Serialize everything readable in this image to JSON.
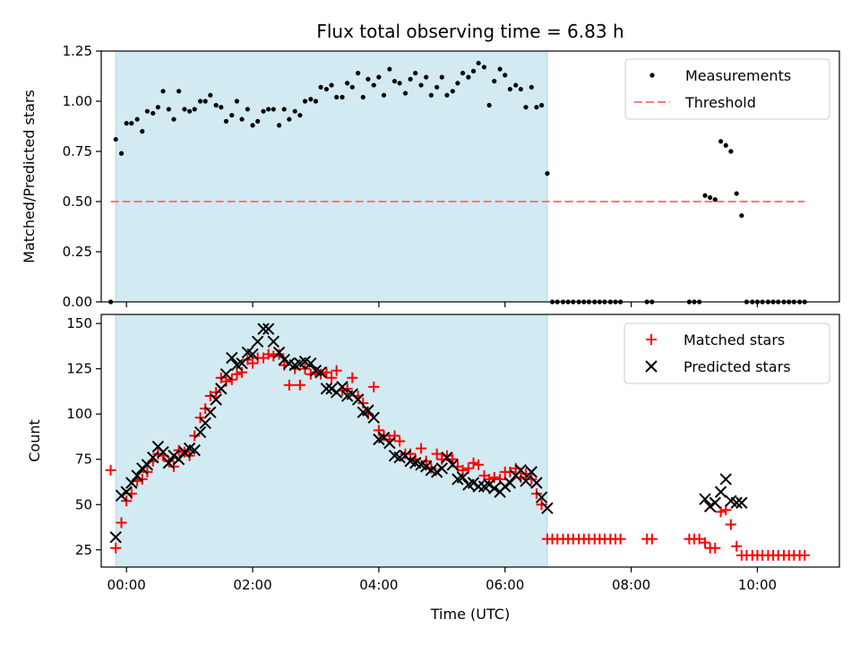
{
  "title": "Flux total observing time = 6.83 h",
  "xlabel": "Time (UTC)",
  "colors": {
    "shade": "#add8e6",
    "measurement": "#000000",
    "threshold": "#ff7777",
    "matched": "#ff0000",
    "predicted": "#000000"
  },
  "chart_data": [
    {
      "type": "scatter",
      "panel": "top",
      "ylabel": "Matched/Predicted stars",
      "xlim": [
        -0.4,
        11.3
      ],
      "ylim": [
        0,
        1.25
      ],
      "yticks": [
        "0.00",
        "0.25",
        "0.50",
        "0.75",
        "1.00",
        "1.25"
      ],
      "grid": false,
      "legend_position": "top-right",
      "shaded_interval": [
        -0.17,
        6.67
      ],
      "threshold": {
        "name": "Threshold",
        "value": 0.5,
        "x": [
          -0.25,
          10.75
        ]
      },
      "measurements": {
        "name": "Measurements",
        "x": [
          -0.25,
          -0.17,
          -0.08,
          0.0,
          0.08,
          0.17,
          0.25,
          0.33,
          0.42,
          0.5,
          0.58,
          0.67,
          0.75,
          0.83,
          0.92,
          1.0,
          1.08,
          1.17,
          1.25,
          1.33,
          1.42,
          1.5,
          1.58,
          1.67,
          1.75,
          1.83,
          1.92,
          2.0,
          2.08,
          2.17,
          2.25,
          2.33,
          2.42,
          2.5,
          2.58,
          2.67,
          2.75,
          2.83,
          2.92,
          3.0,
          3.08,
          3.17,
          3.25,
          3.33,
          3.42,
          3.5,
          3.58,
          3.67,
          3.75,
          3.83,
          3.92,
          4.0,
          4.08,
          4.17,
          4.25,
          4.33,
          4.42,
          4.5,
          4.58,
          4.67,
          4.75,
          4.83,
          4.92,
          5.0,
          5.08,
          5.17,
          5.25,
          5.33,
          5.42,
          5.5,
          5.58,
          5.67,
          5.75,
          5.83,
          5.92,
          6.0,
          6.08,
          6.17,
          6.25,
          6.33,
          6.42,
          6.5,
          6.58,
          6.67,
          6.75,
          6.83,
          6.92,
          7.0,
          7.08,
          7.17,
          7.25,
          7.33,
          7.42,
          7.5,
          7.58,
          7.67,
          7.75,
          7.83,
          8.25,
          8.33,
          8.92,
          9.0,
          9.08,
          9.17,
          9.25,
          9.33,
          9.42,
          9.5,
          9.58,
          9.67,
          9.75,
          9.83,
          9.92,
          10.0,
          10.08,
          10.17,
          10.25,
          10.33,
          10.42,
          10.5,
          10.58,
          10.67,
          10.75
        ],
        "y": [
          0.0,
          0.81,
          0.74,
          0.89,
          0.89,
          0.91,
          0.85,
          0.95,
          0.94,
          0.97,
          1.05,
          0.96,
          0.91,
          1.05,
          0.96,
          0.95,
          0.96,
          1.0,
          1.0,
          1.03,
          0.98,
          0.97,
          0.9,
          0.93,
          1.0,
          0.91,
          0.96,
          0.88,
          0.9,
          0.95,
          0.96,
          0.96,
          0.88,
          0.96,
          0.91,
          0.95,
          0.93,
          1.0,
          1.01,
          1.0,
          1.07,
          1.06,
          1.08,
          1.02,
          1.02,
          1.09,
          1.07,
          1.14,
          1.02,
          1.11,
          1.08,
          1.12,
          1.03,
          1.16,
          1.1,
          1.09,
          1.04,
          1.11,
          1.14,
          1.08,
          1.12,
          1.03,
          1.07,
          1.12,
          1.03,
          1.05,
          1.09,
          1.14,
          1.12,
          1.15,
          1.19,
          1.17,
          0.98,
          1.1,
          1.16,
          1.13,
          1.06,
          1.08,
          1.06,
          0.97,
          1.07,
          0.97,
          0.98,
          0.64,
          0.0,
          0.0,
          0.0,
          0.0,
          0.0,
          0.0,
          0.0,
          0.0,
          0.0,
          0.0,
          0.0,
          0.0,
          0.0,
          0.0,
          0.0,
          0.0,
          0.0,
          0.0,
          0.0,
          0.53,
          0.52,
          0.51,
          0.8,
          0.78,
          0.75,
          0.54,
          0.43,
          0.0,
          0.0,
          0.0,
          0.0,
          0.0,
          0.0,
          0.0,
          0.0,
          0.0,
          0.0,
          0.0,
          0.0
        ]
      }
    },
    {
      "type": "scatter",
      "panel": "bottom",
      "ylabel": "Count",
      "xlim": [
        -0.4,
        11.3
      ],
      "ylim": [
        15.5,
        155
      ],
      "yticks": [
        "25",
        "50",
        "75",
        "100",
        "125",
        "150"
      ],
      "xticks": [
        "00:00",
        "02:00",
        "04:00",
        "06:00",
        "08:00",
        "10:00"
      ],
      "grid": false,
      "legend_position": "top-right",
      "shaded_interval": [
        -0.17,
        6.67
      ],
      "series": [
        {
          "name": "Matched stars",
          "marker": "plus",
          "x": [
            -0.25,
            -0.17,
            -0.08,
            0.0,
            0.08,
            0.17,
            0.25,
            0.33,
            0.42,
            0.5,
            0.58,
            0.67,
            0.75,
            0.83,
            0.92,
            1.0,
            1.08,
            1.17,
            1.25,
            1.33,
            1.42,
            1.5,
            1.58,
            1.67,
            1.75,
            1.83,
            1.92,
            2.0,
            2.08,
            2.17,
            2.25,
            2.33,
            2.42,
            2.5,
            2.58,
            2.67,
            2.75,
            2.83,
            2.92,
            3.0,
            3.08,
            3.17,
            3.25,
            3.33,
            3.42,
            3.5,
            3.58,
            3.67,
            3.75,
            3.83,
            3.92,
            4.0,
            4.08,
            4.17,
            4.25,
            4.33,
            4.42,
            4.5,
            4.58,
            4.67,
            4.75,
            4.83,
            4.92,
            5.0,
            5.08,
            5.17,
            5.25,
            5.33,
            5.42,
            5.5,
            5.58,
            5.67,
            5.75,
            5.83,
            5.92,
            6.0,
            6.08,
            6.17,
            6.25,
            6.33,
            6.42,
            6.5,
            6.58,
            6.67,
            6.75,
            6.83,
            6.92,
            7.0,
            7.08,
            7.17,
            7.25,
            7.33,
            7.42,
            7.5,
            7.58,
            7.67,
            7.75,
            7.83,
            8.25,
            8.33,
            8.92,
            9.0,
            9.08,
            9.17,
            9.25,
            9.33,
            9.42,
            9.5,
            9.58,
            9.67,
            9.75,
            9.83,
            9.92,
            10.0,
            10.08,
            10.17,
            10.25,
            10.33,
            10.42,
            10.5,
            10.58,
            10.67,
            10.75
          ],
          "y": [
            69,
            26,
            40,
            52,
            56,
            63,
            64,
            68,
            74,
            78,
            77,
            74,
            71,
            80,
            79,
            77,
            88,
            98,
            103,
            110,
            112,
            120,
            118,
            119,
            122,
            123,
            130,
            128,
            131,
            131,
            133,
            132,
            133,
            127,
            116,
            125,
            116,
            125,
            122,
            123,
            122,
            123,
            120,
            124,
            113,
            114,
            120,
            110,
            106,
            100,
            115,
            91,
            88,
            86,
            88,
            85,
            78,
            78,
            75,
            81,
            74,
            70,
            78,
            75,
            77,
            75,
            71,
            69,
            70,
            73,
            72,
            66,
            64,
            65,
            64,
            68,
            68,
            70,
            65,
            67,
            64,
            56,
            50,
            31,
            31,
            31,
            31,
            31,
            31,
            31,
            31,
            31,
            31,
            31,
            31,
            31,
            31,
            31,
            31,
            31,
            31,
            31,
            31,
            29,
            26,
            26,
            46,
            47,
            39,
            27,
            22,
            22,
            22,
            22,
            22,
            22,
            22,
            22,
            22,
            22,
            22,
            22,
            22
          ]
        },
        {
          "name": "Predicted stars",
          "marker": "x",
          "x": [
            -0.17,
            -0.08,
            0.0,
            0.08,
            0.17,
            0.25,
            0.33,
            0.42,
            0.5,
            0.58,
            0.67,
            0.75,
            0.83,
            0.92,
            1.0,
            1.08,
            1.17,
            1.25,
            1.33,
            1.42,
            1.5,
            1.58,
            1.67,
            1.75,
            1.83,
            1.92,
            2.0,
            2.08,
            2.17,
            2.25,
            2.33,
            2.42,
            2.5,
            2.58,
            2.67,
            2.75,
            2.83,
            2.92,
            3.0,
            3.08,
            3.17,
            3.25,
            3.33,
            3.42,
            3.5,
            3.58,
            3.67,
            3.75,
            3.83,
            3.92,
            4.0,
            4.08,
            4.17,
            4.25,
            4.33,
            4.42,
            4.5,
            4.58,
            4.67,
            4.75,
            4.83,
            4.92,
            5.0,
            5.08,
            5.17,
            5.25,
            5.33,
            5.42,
            5.5,
            5.58,
            5.67,
            5.75,
            5.83,
            5.92,
            6.0,
            6.08,
            6.17,
            6.25,
            6.33,
            6.42,
            6.5,
            6.58,
            6.67,
            9.17,
            9.25,
            9.33,
            9.42,
            9.5,
            9.58,
            9.67,
            9.75
          ],
          "y": [
            32,
            55,
            57,
            62,
            66,
            70,
            72,
            76,
            82,
            79,
            73,
            77,
            75,
            79,
            81,
            80,
            90,
            95,
            101,
            108,
            114,
            122,
            131,
            127,
            128,
            134,
            133,
            140,
            147,
            147,
            140,
            134,
            130,
            128,
            127,
            128,
            129,
            128,
            124,
            123,
            114,
            114,
            112,
            115,
            110,
            111,
            108,
            101,
            102,
            98,
            86,
            87,
            84,
            77,
            76,
            77,
            74,
            73,
            72,
            71,
            69,
            68,
            70,
            76,
            72,
            64,
            65,
            61,
            62,
            60,
            60,
            61,
            59,
            57,
            60,
            62,
            66,
            69,
            63,
            68,
            62,
            54,
            48,
            53,
            49,
            51,
            57,
            64,
            52,
            51,
            51
          ]
        }
      ]
    }
  ]
}
